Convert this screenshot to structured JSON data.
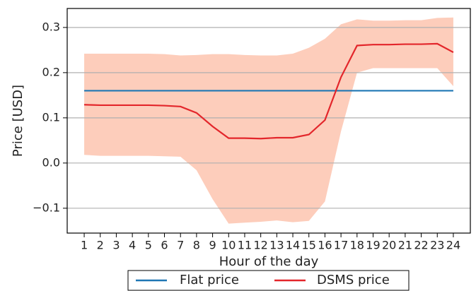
{
  "chart_data": {
    "type": "line",
    "xlabel": "Hour of the day",
    "ylabel": "Price [USD]",
    "x": [
      1,
      2,
      3,
      4,
      5,
      6,
      7,
      8,
      9,
      10,
      11,
      12,
      13,
      14,
      15,
      16,
      17,
      18,
      19,
      20,
      21,
      22,
      23,
      24
    ],
    "series": [
      {
        "name": "Flat price",
        "color": "#1f77b4",
        "values": [
          0.16,
          0.16,
          0.16,
          0.16,
          0.16,
          0.16,
          0.16,
          0.16,
          0.16,
          0.16,
          0.16,
          0.16,
          0.16,
          0.16,
          0.16,
          0.16,
          0.16,
          0.16,
          0.16,
          0.16,
          0.16,
          0.16,
          0.16,
          0.16
        ]
      },
      {
        "name": "DSMS price",
        "color": "#e3262b",
        "values": [
          0.129,
          0.128,
          0.128,
          0.128,
          0.128,
          0.127,
          0.125,
          0.111,
          0.081,
          0.055,
          0.055,
          0.054,
          0.056,
          0.056,
          0.063,
          0.095,
          0.19,
          0.26,
          0.262,
          0.262,
          0.263,
          0.263,
          0.264,
          0.245
        ]
      }
    ],
    "band": {
      "color": "#fdcdbb",
      "upper": [
        0.242,
        0.242,
        0.242,
        0.242,
        0.242,
        0.241,
        0.238,
        0.239,
        0.241,
        0.241,
        0.239,
        0.238,
        0.238,
        0.242,
        0.255,
        0.275,
        0.307,
        0.318,
        0.315,
        0.315,
        0.316,
        0.316,
        0.321,
        0.322
      ],
      "lower": [
        0.018,
        0.016,
        0.016,
        0.016,
        0.016,
        0.015,
        0.014,
        -0.016,
        -0.08,
        -0.134,
        -0.132,
        -0.13,
        -0.127,
        -0.131,
        -0.128,
        -0.085,
        0.07,
        0.2,
        0.21,
        0.21,
        0.21,
        0.21,
        0.21,
        0.17
      ]
    },
    "xlim": [
      -0.06,
      25.06
    ],
    "ylim": [
      -0.155,
      0.342
    ],
    "xticks": [
      1,
      2,
      3,
      4,
      5,
      6,
      7,
      8,
      9,
      10,
      11,
      12,
      13,
      14,
      15,
      16,
      17,
      18,
      19,
      20,
      21,
      22,
      23,
      24
    ],
    "yticks": [
      {
        "value": -0.1,
        "label": "−0.1"
      },
      {
        "value": 0,
        "label": "0.0"
      },
      {
        "value": 0.1,
        "label": "0.1"
      },
      {
        "value": 0.2,
        "label": "0.2"
      },
      {
        "value": 0.3,
        "label": "0.3"
      }
    ],
    "grid": "y",
    "legend": "lower center"
  }
}
